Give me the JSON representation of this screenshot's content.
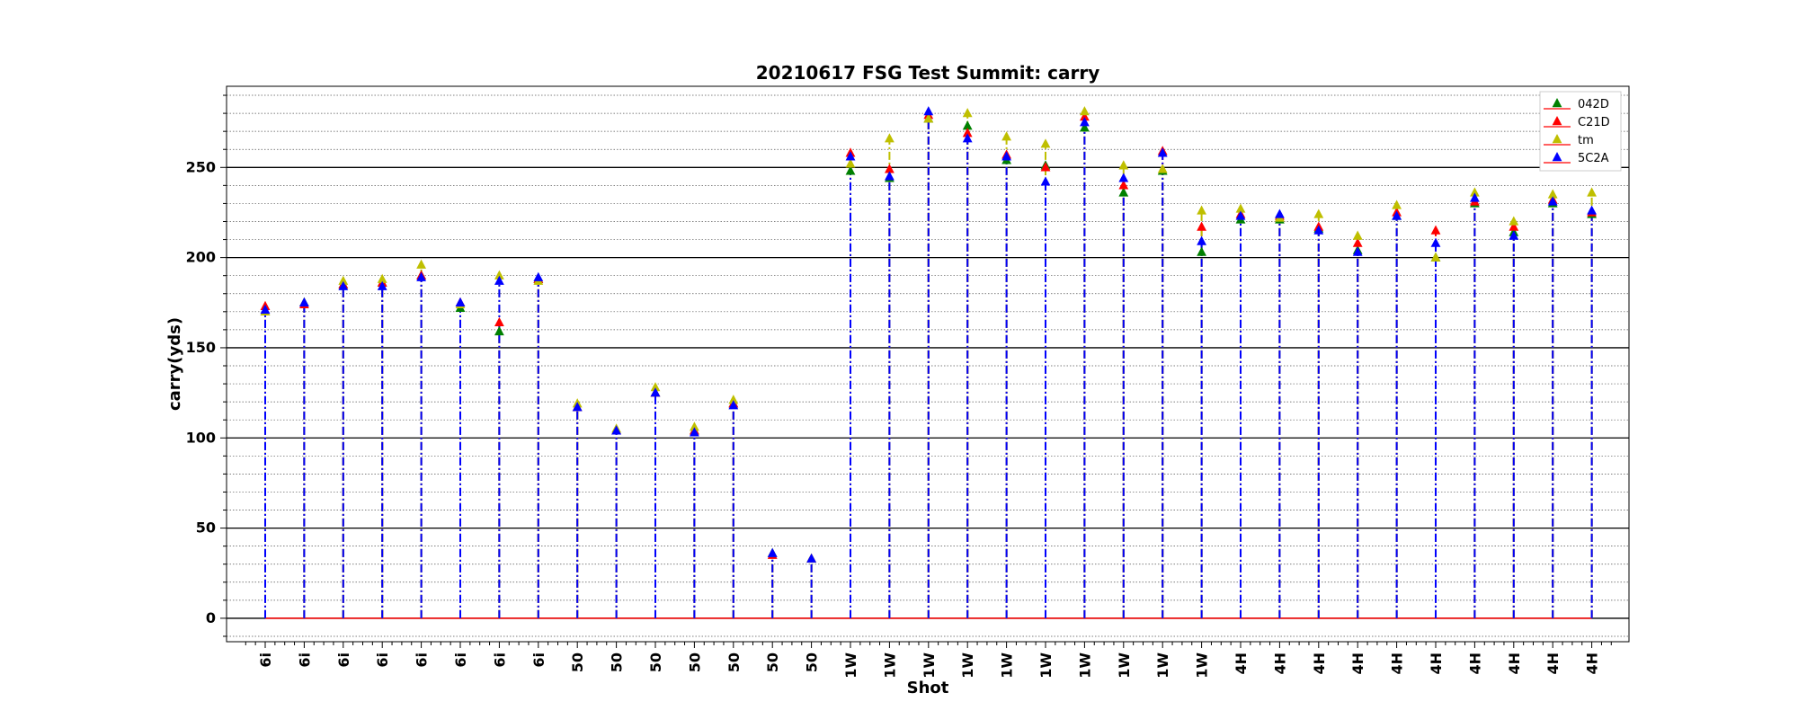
{
  "chart_data": {
    "type": "line",
    "title": "20210617 FSG Test Summit: carry",
    "xlabel": "Shot",
    "ylabel": "carry(yds)",
    "ylim": [
      -13,
      295
    ],
    "yticks": [
      0,
      50,
      100,
      150,
      200,
      250
    ],
    "grid": true,
    "legend_position": "top-right",
    "categories": [
      "6i",
      "6i",
      "6i",
      "6i",
      "6i",
      "6i",
      "6i",
      "6i",
      "50",
      "50",
      "50",
      "50",
      "50",
      "50",
      "50",
      "1W",
      "1W",
      "1W",
      "1W",
      "1W",
      "1W",
      "1W",
      "1W",
      "1W",
      "1W",
      "4H",
      "4H",
      "4H",
      "4H",
      "4H",
      "4H",
      "4H",
      "4H",
      "4H",
      "4H"
    ],
    "series": [
      {
        "name": "042D",
        "color": "#008000",
        "values": [
          170,
          175,
          185,
          186,
          190,
          172,
          159,
          188,
          117,
          104,
          125,
          104,
          119,
          36,
          33,
          248,
          244,
          277,
          273,
          254,
          251,
          272,
          236,
          248,
          203,
          221,
          221,
          216,
          204,
          223,
          200,
          230,
          214,
          230,
          224
        ]
      },
      {
        "name": "C21D",
        "color": "#ff0000",
        "values": [
          173,
          174,
          185,
          186,
          190,
          175,
          164,
          188,
          117,
          104,
          125,
          104,
          119,
          35,
          33,
          258,
          249,
          279,
          269,
          257,
          250,
          278,
          240,
          259,
          217,
          224,
          223,
          217,
          208,
          225,
          215,
          231,
          217,
          232,
          225
        ]
      },
      {
        "name": "tm",
        "color": "#bfbf00",
        "values": [
          170,
          175,
          187,
          188,
          196,
          174,
          190,
          187,
          119,
          105,
          128,
          106,
          121,
          36,
          33,
          252,
          266,
          277,
          280,
          267,
          263,
          281,
          251,
          249,
          226,
          227,
          222,
          224,
          212,
          229,
          200,
          236,
          220,
          235,
          236
        ]
      },
      {
        "name": "5C2A",
        "color": "#0000ff",
        "values": [
          171,
          175,
          184,
          184,
          189,
          175,
          187,
          189,
          117,
          104,
          125,
          103,
          118,
          36,
          33,
          256,
          245,
          281,
          266,
          256,
          242,
          275,
          244,
          258,
          209,
          223,
          224,
          215,
          203,
          223,
          208,
          233,
          212,
          231,
          226
        ]
      }
    ]
  }
}
